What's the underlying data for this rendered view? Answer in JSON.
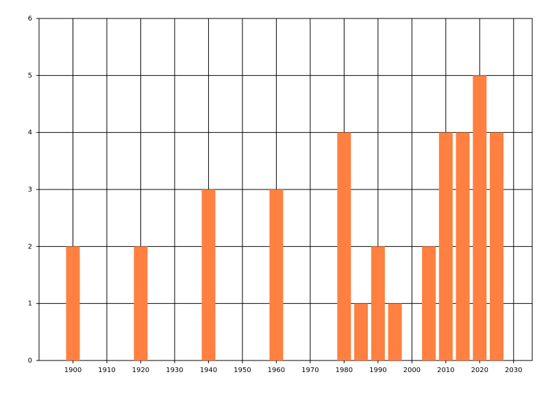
{
  "chart_data": {
    "type": "bar",
    "x": [
      1900,
      1920,
      1940,
      1960,
      1980,
      1985,
      1990,
      1995,
      2005,
      2010,
      2015,
      2020,
      2025
    ],
    "values": [
      2,
      2,
      3,
      3,
      4,
      1,
      2,
      1,
      2,
      4,
      4,
      5,
      4
    ],
    "color": "#ff8040",
    "xlim": [
      1890,
      2035.5
    ],
    "xticks": [
      1900,
      1910,
      1920,
      1930,
      1940,
      1950,
      1960,
      1970,
      1980,
      1990,
      2000,
      2010,
      2020,
      2030
    ],
    "ylim": [
      0,
      6
    ],
    "yticks": [
      0,
      1,
      2,
      3,
      4,
      5,
      6
    ],
    "grid": true
  }
}
